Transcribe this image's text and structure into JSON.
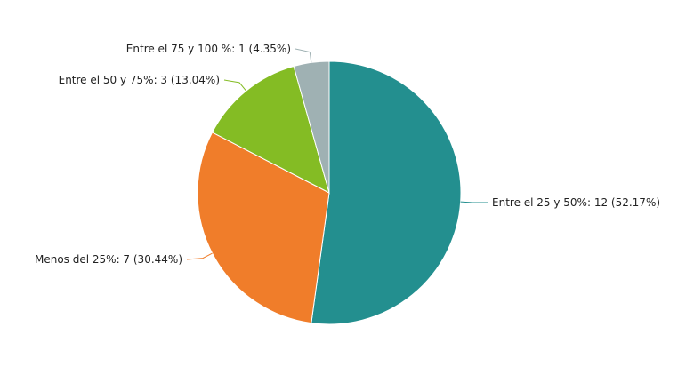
{
  "chart_data": {
    "type": "pie",
    "title": "",
    "series": [
      {
        "name": "",
        "slices": [
          {
            "label": "Entre el 25 y 50%",
            "value": 12,
            "percent": 52.17,
            "color": "#238f8f",
            "display": "Entre el 25 y 50%: 12 (52.17%)"
          },
          {
            "label": "Menos del 25%",
            "value": 7,
            "percent": 30.44,
            "color": "#f07d2a",
            "display": "Menos del 25%: 7 (30.44%)"
          },
          {
            "label": "Entre el 50 y 75%",
            "value": 3,
            "percent": 13.04,
            "color": "#84bc24",
            "display": "Entre el 50 y 75%: 3 (13.04%)"
          },
          {
            "label": "Entre el 75 y 100 %",
            "value": 1,
            "percent": 4.35,
            "color": "#9fb1b3",
            "display": "Entre el 75 y 100 %: 1 (4.35%)"
          }
        ]
      }
    ],
    "start_angle": "top",
    "direction": "clockwise",
    "legend": "none"
  }
}
